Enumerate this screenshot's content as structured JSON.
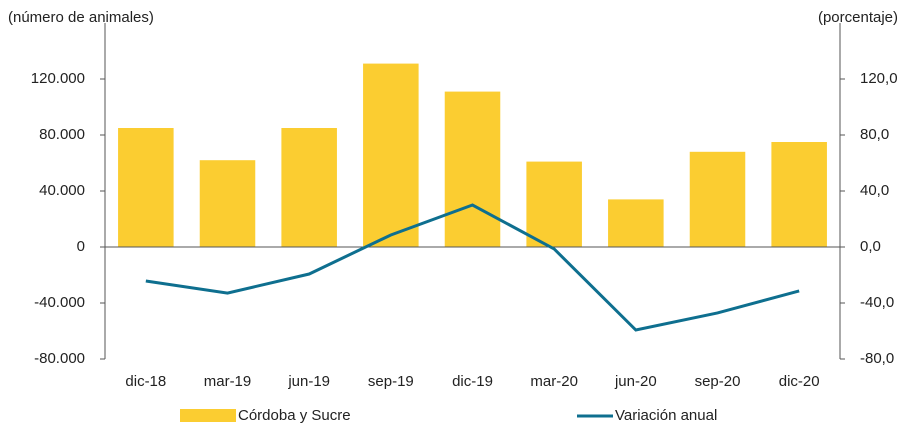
{
  "chart_data": {
    "type": "bar_line",
    "y_label": "(número de animales)",
    "y2_label": "(porcentaje)",
    "categories": [
      "dic-18",
      "mar-19",
      "jun-19",
      "sep-19",
      "dic-19",
      "mar-20",
      "jun-20",
      "sep-20",
      "dic-20"
    ],
    "series": [
      {
        "name": "Córdoba y Sucre",
        "type": "bar",
        "color": "#fbcd31",
        "values": [
          85000,
          62000,
          85000,
          131000,
          111000,
          61000,
          34000,
          68000,
          75000
        ]
      },
      {
        "name": "Variación anual",
        "type": "line",
        "axis": "y2",
        "color": "#0e6f8f",
        "values": [
          -24.3,
          -32.9,
          -19.3,
          8.6,
          30,
          -1.4,
          -59.3,
          -47.1,
          -31.4
        ]
      }
    ],
    "ylim": [
      -80000,
      160000
    ],
    "yticks": [
      {
        "value": -80000,
        "label": "-80.000"
      },
      {
        "value": -40000,
        "label": "-40.000"
      },
      0,
      {
        "value": 40000,
        "label": "40.000"
      },
      {
        "value": 80000,
        "label": "80.000"
      },
      {
        "value": 120000,
        "label": "120.000"
      }
    ],
    "y2lim": [
      -80,
      160
    ],
    "y2ticks": [
      {
        "value": -80,
        "label": "-80,0"
      },
      {
        "value": -40,
        "label": "-40,0"
      },
      {
        "value": 0,
        "label": "0,0"
      },
      {
        "value": 40,
        "label": "40,0"
      },
      {
        "value": 80,
        "label": "80,0"
      },
      {
        "value": 120,
        "label": "120,0"
      }
    ]
  }
}
